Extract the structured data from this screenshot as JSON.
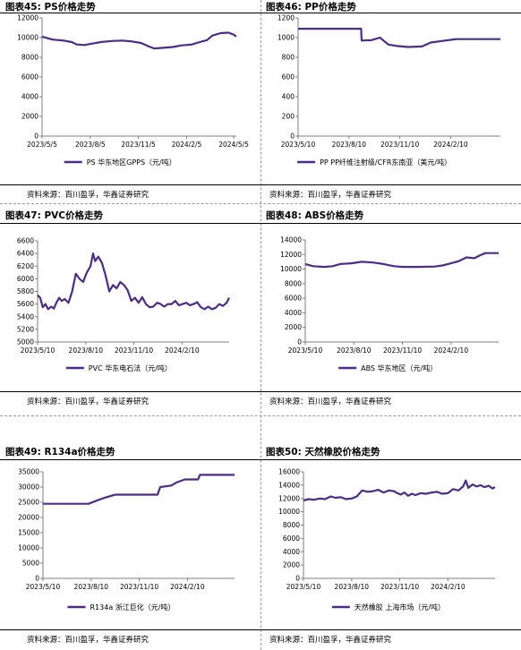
{
  "colors": {
    "line": "#4b2d87",
    "axis": "#7f7f7f",
    "text": "#000000"
  },
  "charts": [
    {
      "title": "图表45: PS价格走势",
      "source": "资料来源：百川盈孚，华鑫证券研究",
      "chart_data": {
        "type": "line",
        "title": "",
        "xlabel": "",
        "ylabel": "",
        "ylim": [
          0,
          12000
        ],
        "yticks": [
          0,
          2000,
          4000,
          6000,
          8000,
          10000,
          12000
        ],
        "xticks": [
          "2023/5/5",
          "2023/8/5",
          "2023/11/5",
          "2024/2/5",
          "2024/5/5"
        ],
        "xlim": [
          "2023-05-05",
          "2024-05-10"
        ],
        "legend_position": "bottom",
        "grid": false,
        "series": [
          {
            "name": "PS 华东地区GPPS（元/吨）",
            "points": [
              [
                "2023-05-05",
                10100
              ],
              [
                "2023-05-25",
                9800
              ],
              [
                "2023-06-15",
                9700
              ],
              [
                "2023-07-01",
                9550
              ],
              [
                "2023-07-10",
                9300
              ],
              [
                "2023-07-25",
                9250
              ],
              [
                "2023-08-10",
                9400
              ],
              [
                "2023-08-25",
                9550
              ],
              [
                "2023-09-15",
                9650
              ],
              [
                "2023-10-05",
                9700
              ],
              [
                "2023-10-25",
                9600
              ],
              [
                "2023-11-10",
                9450
              ],
              [
                "2023-11-25",
                9100
              ],
              [
                "2023-12-05",
                8900
              ],
              [
                "2023-12-20",
                8950
              ],
              [
                "2024-01-10",
                9050
              ],
              [
                "2024-01-25",
                9200
              ],
              [
                "2024-02-15",
                9300
              ],
              [
                "2024-03-01",
                9550
              ],
              [
                "2024-03-15",
                9750
              ],
              [
                "2024-03-25",
                10200
              ],
              [
                "2024-04-10",
                10450
              ],
              [
                "2024-04-25",
                10500
              ],
              [
                "2024-05-05",
                10300
              ],
              [
                "2024-05-10",
                10100
              ]
            ]
          }
        ]
      }
    },
    {
      "title": "图表46: PP价格走势",
      "source": "资料来源：百川盈孚，华鑫证券研究",
      "chart_data": {
        "type": "line",
        "title": "",
        "xlabel": "",
        "ylabel": "",
        "ylim": [
          0,
          1200
        ],
        "yticks": [
          0,
          200,
          400,
          600,
          800,
          1000,
          1200
        ],
        "xticks": [
          "2023/5/10",
          "2023/8/10",
          "2023/11/10",
          "2024/2/10"
        ],
        "xlim": [
          "2023-05-10",
          "2024-05-10"
        ],
        "legend_position": "bottom",
        "grid": false,
        "series": [
          {
            "name": "PP PP纤维注射级/CFR东南亚（美元/吨）",
            "points": [
              [
                "2023-05-10",
                1090
              ],
              [
                "2023-09-01",
                1090
              ],
              [
                "2023-09-02",
                970
              ],
              [
                "2023-09-20",
                975
              ],
              [
                "2023-10-05",
                1000
              ],
              [
                "2023-10-20",
                930
              ],
              [
                "2023-11-05",
                915
              ],
              [
                "2023-11-25",
                905
              ],
              [
                "2023-12-20",
                910
              ],
              [
                "2024-01-05",
                950
              ],
              [
                "2024-01-25",
                965
              ],
              [
                "2024-02-20",
                985
              ],
              [
                "2024-05-10",
                985
              ]
            ]
          }
        ]
      }
    },
    {
      "title": "图表47: PVC价格走势",
      "source": "资料来源：百川盈孚，华鑫证券研究",
      "chart_data": {
        "type": "line",
        "title": "",
        "xlabel": "",
        "ylabel": "",
        "ylim": [
          5000,
          6600
        ],
        "yticks": [
          5000,
          5200,
          5400,
          5600,
          5800,
          6000,
          6200,
          6400,
          6600
        ],
        "xticks": [
          "2023/5/10",
          "2023/8/10",
          "2023/11/10",
          "2024/2/10"
        ],
        "xlim": [
          "2023-05-10",
          "2024-05-10"
        ],
        "legend_position": "bottom",
        "grid": false,
        "series": [
          {
            "name": "PVC 华东电石法（元/吨）",
            "points": [
              [
                "2023-05-10",
                5740
              ],
              [
                "2023-05-15",
                5700
              ],
              [
                "2023-05-20",
                5550
              ],
              [
                "2023-05-25",
                5600
              ],
              [
                "2023-05-30",
                5520
              ],
              [
                "2023-06-05",
                5560
              ],
              [
                "2023-06-10",
                5530
              ],
              [
                "2023-06-15",
                5620
              ],
              [
                "2023-06-20",
                5700
              ],
              [
                "2023-06-25",
                5650
              ],
              [
                "2023-07-01",
                5680
              ],
              [
                "2023-07-08",
                5620
              ],
              [
                "2023-07-15",
                5800
              ],
              [
                "2023-07-22",
                6080
              ],
              [
                "2023-07-29",
                6000
              ],
              [
                "2023-08-05",
                5950
              ],
              [
                "2023-08-12",
                6100
              ],
              [
                "2023-08-19",
                6200
              ],
              [
                "2023-08-24",
                6400
              ],
              [
                "2023-08-28",
                6280
              ],
              [
                "2023-09-03",
                6350
              ],
              [
                "2023-09-10",
                6250
              ],
              [
                "2023-09-17",
                6050
              ],
              [
                "2023-09-24",
                5800
              ],
              [
                "2023-10-01",
                5900
              ],
              [
                "2023-10-08",
                5850
              ],
              [
                "2023-10-15",
                5950
              ],
              [
                "2023-10-22",
                5900
              ],
              [
                "2023-10-29",
                5820
              ],
              [
                "2023-11-05",
                5650
              ],
              [
                "2023-11-12",
                5700
              ],
              [
                "2023-11-19",
                5620
              ],
              [
                "2023-11-26",
                5710
              ],
              [
                "2023-12-03",
                5600
              ],
              [
                "2023-12-10",
                5550
              ],
              [
                "2023-12-17",
                5560
              ],
              [
                "2023-12-24",
                5620
              ],
              [
                "2023-12-31",
                5600
              ],
              [
                "2024-01-07",
                5560
              ],
              [
                "2024-01-14",
                5600
              ],
              [
                "2024-01-21",
                5600
              ],
              [
                "2024-01-28",
                5650
              ],
              [
                "2024-02-04",
                5580
              ],
              [
                "2024-02-11",
                5600
              ],
              [
                "2024-02-18",
                5620
              ],
              [
                "2024-02-25",
                5580
              ],
              [
                "2024-03-03",
                5600
              ],
              [
                "2024-03-10",
                5630
              ],
              [
                "2024-03-17",
                5550
              ],
              [
                "2024-03-24",
                5520
              ],
              [
                "2024-03-31",
                5560
              ],
              [
                "2024-04-07",
                5520
              ],
              [
                "2024-04-14",
                5540
              ],
              [
                "2024-04-21",
                5600
              ],
              [
                "2024-04-28",
                5570
              ],
              [
                "2024-05-05",
                5620
              ],
              [
                "2024-05-10",
                5700
              ]
            ]
          }
        ]
      }
    },
    {
      "title": "图表48: ABS价格走势",
      "source": "资料来源：百川盈孚，华鑫证券研究",
      "chart_data": {
        "type": "line",
        "title": "",
        "xlabel": "",
        "ylabel": "",
        "ylim": [
          0,
          14000
        ],
        "yticks": [
          0,
          2000,
          4000,
          6000,
          8000,
          10000,
          12000,
          14000
        ],
        "xticks": [
          "2023/5/10",
          "2023/8/10",
          "2023/11/10",
          "2024/2/10"
        ],
        "xlim": [
          "2023-05-10",
          "2024-05-10"
        ],
        "legend_position": "bottom",
        "grid": false,
        "series": [
          {
            "name": "ABS 华东地区（元/吨）",
            "points": [
              [
                "2023-05-10",
                10700
              ],
              [
                "2023-05-25",
                10400
              ],
              [
                "2023-06-15",
                10300
              ],
              [
                "2023-07-01",
                10400
              ],
              [
                "2023-07-15",
                10700
              ],
              [
                "2023-08-05",
                10800
              ],
              [
                "2023-08-25",
                11000
              ],
              [
                "2023-09-15",
                10900
              ],
              [
                "2023-10-05",
                10700
              ],
              [
                "2023-10-25",
                10400
              ],
              [
                "2023-11-10",
                10300
              ],
              [
                "2023-12-10",
                10300
              ],
              [
                "2024-01-10",
                10350
              ],
              [
                "2024-01-25",
                10500
              ],
              [
                "2024-02-10",
                10800
              ],
              [
                "2024-02-25",
                11100
              ],
              [
                "2024-03-10",
                11600
              ],
              [
                "2024-03-25",
                11500
              ],
              [
                "2024-04-05",
                11900
              ],
              [
                "2024-04-15",
                12200
              ],
              [
                "2024-05-10",
                12200
              ]
            ]
          }
        ]
      }
    },
    {
      "title": "图表49: R134a价格走势",
      "source": "资料来源：百川盈孚，华鑫证券研究",
      "chart_data": {
        "type": "line",
        "title": "",
        "xlabel": "",
        "ylabel": "",
        "ylim": [
          0,
          35000
        ],
        "yticks": [
          0,
          5000,
          10000,
          15000,
          20000,
          25000,
          30000,
          35000
        ],
        "xticks": [
          "2023/5/10",
          "2023/8/10",
          "2023/11/10",
          "2024/2/10"
        ],
        "xlim": [
          "2023-05-10",
          "2024-05-10"
        ],
        "legend_position": "bottom",
        "grid": false,
        "series": [
          {
            "name": "R134a 浙江巨化（元/吨）",
            "points": [
              [
                "2023-05-10",
                24500
              ],
              [
                "2023-08-05",
                24500
              ],
              [
                "2023-08-20",
                25500
              ],
              [
                "2023-09-05",
                26500
              ],
              [
                "2023-09-25",
                27500
              ],
              [
                "2023-12-15",
                27500
              ],
              [
                "2023-12-20",
                30000
              ],
              [
                "2024-01-10",
                30500
              ],
              [
                "2024-01-20",
                31500
              ],
              [
                "2024-02-05",
                32500
              ],
              [
                "2024-03-01",
                32500
              ],
              [
                "2024-03-05",
                34000
              ],
              [
                "2024-05-10",
                34000
              ]
            ]
          }
        ]
      }
    },
    {
      "title": "图表50: 天然橡胶价格走势",
      "source": "资料来源：百川盈孚，华鑫证券研究",
      "chart_data": {
        "type": "line",
        "title": "",
        "xlabel": "",
        "ylabel": "",
        "ylim": [
          0,
          16000
        ],
        "yticks": [
          0,
          2000,
          4000,
          6000,
          8000,
          10000,
          12000,
          14000,
          16000
        ],
        "xticks": [
          "2023/5/10",
          "2023/8/10",
          "2023/11/10",
          "2024/2/10"
        ],
        "xlim": [
          "2023-05-10",
          "2024-05-10"
        ],
        "legend_position": "bottom",
        "grid": false,
        "series": [
          {
            "name": "天然橡胶 上海市场（元/吨）",
            "points": [
              [
                "2023-05-10",
                11700
              ],
              [
                "2023-05-20",
                11900
              ],
              [
                "2023-05-30",
                11800
              ],
              [
                "2023-06-10",
                12000
              ],
              [
                "2023-06-20",
                11900
              ],
              [
                "2023-07-01",
                12300
              ],
              [
                "2023-07-10",
                12100
              ],
              [
                "2023-07-20",
                12200
              ],
              [
                "2023-07-30",
                11900
              ],
              [
                "2023-08-10",
                12000
              ],
              [
                "2023-08-20",
                12300
              ],
              [
                "2023-08-30",
                13200
              ],
              [
                "2023-09-10",
                13000
              ],
              [
                "2023-09-20",
                13100
              ],
              [
                "2023-09-30",
                13300
              ],
              [
                "2023-10-10",
                12900
              ],
              [
                "2023-10-20",
                13200
              ],
              [
                "2023-10-30",
                13100
              ],
              [
                "2023-11-05",
                12800
              ],
              [
                "2023-11-12",
                12600
              ],
              [
                "2023-11-19",
                12900
              ],
              [
                "2023-11-26",
                12400
              ],
              [
                "2023-12-03",
                12700
              ],
              [
                "2023-12-10",
                12500
              ],
              [
                "2023-12-20",
                12800
              ],
              [
                "2023-12-30",
                12700
              ],
              [
                "2024-01-10",
                12900
              ],
              [
                "2024-01-20",
                13000
              ],
              [
                "2024-01-30",
                12700
              ],
              [
                "2024-02-10",
                12800
              ],
              [
                "2024-02-20",
                13400
              ],
              [
                "2024-03-01",
                13200
              ],
              [
                "2024-03-10",
                13800
              ],
              [
                "2024-03-15",
                14700
              ],
              [
                "2024-03-20",
                13600
              ],
              [
                "2024-03-28",
                14100
              ],
              [
                "2024-04-05",
                13800
              ],
              [
                "2024-04-12",
                14000
              ],
              [
                "2024-04-20",
                13700
              ],
              [
                "2024-04-28",
                13900
              ],
              [
                "2024-05-05",
                13500
              ],
              [
                "2024-05-10",
                13700
              ]
            ]
          }
        ]
      }
    }
  ]
}
